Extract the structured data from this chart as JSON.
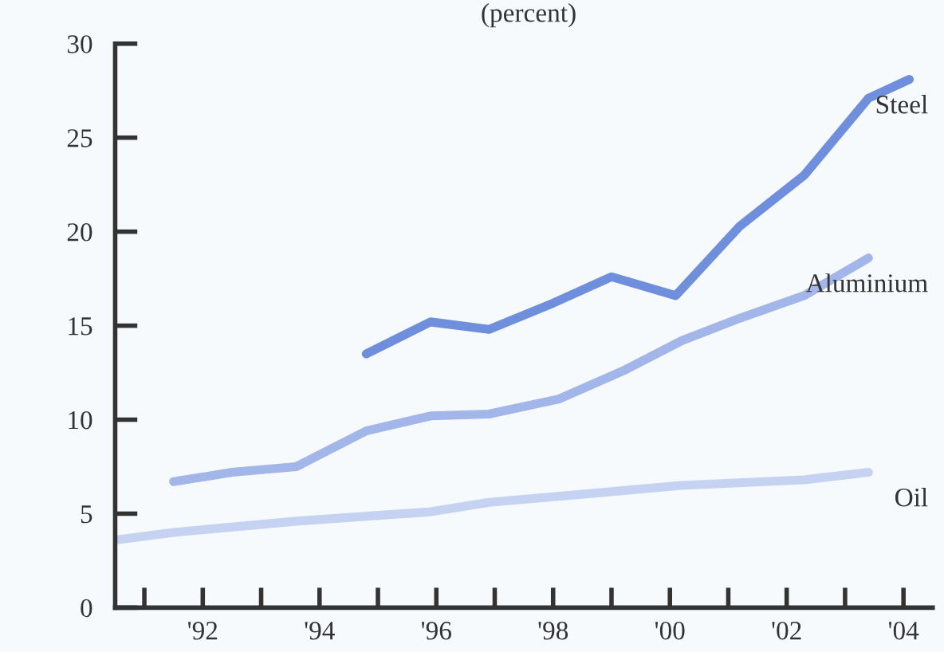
{
  "chart_data": {
    "type": "line",
    "title": "(percent)",
    "series": [
      {
        "name": "Steel",
        "color": "#6f8fdc",
        "x": [
          1994.8,
          1995.9,
          1996.9,
          1998.0,
          1999.0,
          2000.1,
          2001.2,
          2002.3,
          2003.4,
          2004.1
        ],
        "values": [
          13.5,
          15.2,
          14.8,
          16.2,
          17.6,
          16.6,
          20.3,
          23.0,
          27.1,
          28.1
        ]
      },
      {
        "name": "Aluminium",
        "color": "#a3b6ea",
        "x": [
          1991.5,
          1992.5,
          1993.6,
          1994.8,
          1995.9,
          1996.9,
          1998.1,
          1999.2,
          2000.2,
          2001.2,
          2002.3,
          2003.4
        ],
        "values": [
          6.7,
          7.2,
          7.5,
          9.4,
          10.2,
          10.3,
          11.1,
          12.6,
          14.2,
          15.4,
          16.6,
          18.6
        ]
      },
      {
        "name": "Oil",
        "color": "#c5d2f2",
        "x": [
          1990.5,
          1991.5,
          1993.6,
          1995.9,
          1996.9,
          1999.1,
          2000.2,
          2002.3,
          2003.4
        ],
        "values": [
          3.6,
          4.0,
          4.6,
          5.1,
          5.6,
          6.2,
          6.5,
          6.8,
          7.2
        ]
      }
    ],
    "xlim": [
      1990.5,
      2004.5
    ],
    "xticks": [
      {
        "value": 1991,
        "label": null
      },
      {
        "value": 1992,
        "label": "'92"
      },
      {
        "value": 1993,
        "label": null
      },
      {
        "value": 1994,
        "label": "'94"
      },
      {
        "value": 1995,
        "label": null
      },
      {
        "value": 1996,
        "label": "'96"
      },
      {
        "value": 1997,
        "label": null
      },
      {
        "value": 1998,
        "label": "'98"
      },
      {
        "value": 1999,
        "label": null
      },
      {
        "value": 2000,
        "label": "'00"
      },
      {
        "value": 2001,
        "label": null
      },
      {
        "value": 2002,
        "label": "'02"
      },
      {
        "value": 2003,
        "label": null
      },
      {
        "value": 2004,
        "label": "'04"
      }
    ],
    "ylim": [
      0,
      30
    ],
    "yticks": [
      0,
      5,
      10,
      15,
      20,
      25,
      30
    ],
    "grid": false,
    "legend": false,
    "marker": "none",
    "line_style": "solid"
  }
}
